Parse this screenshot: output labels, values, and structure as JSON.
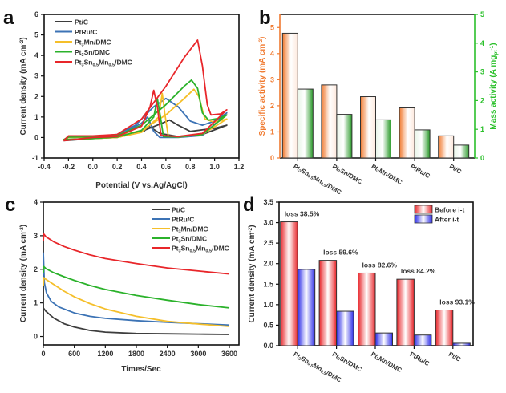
{
  "chart_data": [
    {
      "panel": "a",
      "type": "line",
      "title": "",
      "xlabel": "Potential (V vs.Ag/AgCl)",
      "ylabel": "Current density (mA cm⁻²)",
      "xlim": [
        -0.4,
        1.2
      ],
      "ylim": [
        -1,
        6
      ],
      "xticks": [
        "-0.4",
        "-0.2",
        "0.0",
        "0.2",
        "0.4",
        "0.6",
        "0.8",
        "1.0",
        "1.2"
      ],
      "yticks": [
        "-1",
        "0",
        "1",
        "2",
        "3",
        "4",
        "5",
        "6"
      ],
      "legend_position": "top-left",
      "series": [
        {
          "name": "Pt/C",
          "color": "#3d3d3d",
          "peak_forward": [
            0.63,
            0.85
          ],
          "peak_backward": [
            0.46,
            0.55
          ],
          "points": [
            [
              -0.24,
              -0.15
            ],
            [
              -0.2,
              0.0
            ],
            [
              0.0,
              0.02
            ],
            [
              0.2,
              0.05
            ],
            [
              0.4,
              0.3
            ],
            [
              0.55,
              0.65
            ],
            [
              0.63,
              0.85
            ],
            [
              0.7,
              0.6
            ],
            [
              0.8,
              0.3
            ],
            [
              1.0,
              0.45
            ],
            [
              1.1,
              0.6
            ],
            [
              1.1,
              0.6
            ],
            [
              0.9,
              0.15
            ],
            [
              0.7,
              0.05
            ],
            [
              0.55,
              0.2
            ],
            [
              0.46,
              0.55
            ],
            [
              0.42,
              0.3
            ],
            [
              0.2,
              0.0
            ],
            [
              0.0,
              -0.05
            ],
            [
              -0.24,
              -0.15
            ]
          ]
        },
        {
          "name": "PtRu/C",
          "color": "#3c73b5",
          "peak_forward": [
            0.6,
            1.9
          ],
          "peak_backward": [
            0.45,
            1.0
          ],
          "points": [
            [
              -0.24,
              -0.12
            ],
            [
              -0.2,
              0.02
            ],
            [
              0.0,
              0.05
            ],
            [
              0.2,
              0.15
            ],
            [
              0.35,
              0.6
            ],
            [
              0.5,
              1.5
            ],
            [
              0.6,
              1.9
            ],
            [
              0.7,
              1.5
            ],
            [
              0.8,
              0.8
            ],
            [
              0.9,
              0.6
            ],
            [
              1.0,
              0.8
            ],
            [
              1.1,
              1.2
            ],
            [
              1.1,
              1.2
            ],
            [
              0.9,
              0.1
            ],
            [
              0.7,
              0.0
            ],
            [
              0.55,
              0.0
            ],
            [
              0.5,
              0.3
            ],
            [
              0.45,
              1.0
            ],
            [
              0.4,
              0.7
            ],
            [
              0.2,
              0.05
            ],
            [
              0.0,
              -0.03
            ],
            [
              -0.24,
              -0.12
            ]
          ]
        },
        {
          "name": "Pt₃Mn/DMC",
          "color": "#f5bf2a",
          "peak_forward": [
            0.83,
            2.35
          ],
          "peak_backward": [
            0.57,
            2.15
          ],
          "points": [
            [
              -0.24,
              -0.12
            ],
            [
              -0.2,
              0.0
            ],
            [
              0.0,
              0.02
            ],
            [
              0.2,
              0.05
            ],
            [
              0.4,
              0.35
            ],
            [
              0.6,
              1.1
            ],
            [
              0.75,
              1.9
            ],
            [
              0.83,
              2.35
            ],
            [
              0.87,
              2.0
            ],
            [
              0.92,
              0.9
            ],
            [
              1.0,
              0.75
            ],
            [
              1.1,
              0.9
            ],
            [
              1.1,
              0.9
            ],
            [
              0.9,
              0.15
            ],
            [
              0.7,
              0.02
            ],
            [
              0.62,
              0.05
            ],
            [
              0.59,
              1.2
            ],
            [
              0.57,
              2.15
            ],
            [
              0.54,
              1.0
            ],
            [
              0.4,
              0.25
            ],
            [
              0.2,
              0.0
            ],
            [
              0.0,
              -0.05
            ],
            [
              -0.24,
              -0.12
            ]
          ]
        },
        {
          "name": "Pt₃Sn/DMC",
          "color": "#2bb22b",
          "peak_forward": [
            0.81,
            2.8
          ],
          "peak_backward": [
            0.53,
            1.9
          ],
          "points": [
            [
              -0.24,
              -0.1
            ],
            [
              -0.2,
              0.02
            ],
            [
              0.0,
              0.03
            ],
            [
              0.2,
              0.1
            ],
            [
              0.4,
              0.6
            ],
            [
              0.6,
              1.6
            ],
            [
              0.75,
              2.5
            ],
            [
              0.81,
              2.8
            ],
            [
              0.86,
              2.4
            ],
            [
              0.9,
              1.2
            ],
            [
              0.95,
              0.85
            ],
            [
              1.05,
              0.95
            ],
            [
              1.1,
              1.1
            ],
            [
              1.1,
              1.1
            ],
            [
              0.9,
              0.15
            ],
            [
              0.7,
              0.03
            ],
            [
              0.58,
              0.05
            ],
            [
              0.55,
              1.2
            ],
            [
              0.53,
              1.9
            ],
            [
              0.5,
              1.0
            ],
            [
              0.4,
              0.35
            ],
            [
              0.2,
              0.02
            ],
            [
              0.0,
              -0.05
            ],
            [
              -0.24,
              -0.1
            ]
          ]
        },
        {
          "name": "Pt₃Sn₀.₅Mn₀.₅/DMC",
          "color": "#e8262a",
          "peak_forward": [
            0.86,
            4.75
          ],
          "peak_backward": [
            0.5,
            2.3
          ],
          "points": [
            [
              -0.24,
              -0.15
            ],
            [
              -0.2,
              0.08
            ],
            [
              0.0,
              0.08
            ],
            [
              0.2,
              0.15
            ],
            [
              0.4,
              0.9
            ],
            [
              0.6,
              2.5
            ],
            [
              0.75,
              3.9
            ],
            [
              0.86,
              4.75
            ],
            [
              0.9,
              3.5
            ],
            [
              0.94,
              1.6
            ],
            [
              0.97,
              1.1
            ],
            [
              1.05,
              1.15
            ],
            [
              1.1,
              1.35
            ],
            [
              1.1,
              1.35
            ],
            [
              0.9,
              0.2
            ],
            [
              0.7,
              0.05
            ],
            [
              0.56,
              0.1
            ],
            [
              0.53,
              1.5
            ],
            [
              0.5,
              2.3
            ],
            [
              0.47,
              1.5
            ],
            [
              0.4,
              0.55
            ],
            [
              0.2,
              0.05
            ],
            [
              0.0,
              0.0
            ],
            [
              -0.24,
              -0.15
            ]
          ]
        }
      ]
    },
    {
      "panel": "b",
      "type": "bar",
      "title": "",
      "categories": [
        "Pt₃Sn₀.₅Mn₀.₅/DMC",
        "Pt₃Sn/DMC",
        "Pt₃Mn/DMC",
        "PtRu/C",
        "Pt/C"
      ],
      "series": [
        {
          "name": "Specific activity",
          "axis": "left",
          "color": "#f07a30",
          "values": [
            4.78,
            2.8,
            2.35,
            1.92,
            0.85
          ]
        },
        {
          "name": "Mass activity",
          "axis": "right",
          "color": "#2a9a2a",
          "values": [
            2.4,
            1.52,
            1.33,
            0.98,
            0.45
          ]
        }
      ],
      "ylabel": "Specific activity (mA cm⁻²)",
      "ylabel_right": "Mass activity (A mgₚₜ⁻¹)",
      "ylim": [
        0,
        5.5
      ],
      "ylim_right": [
        0,
        5
      ],
      "yticks": [
        "0",
        "1",
        "2",
        "3",
        "4",
        "5"
      ],
      "yticks_right": [
        "0",
        "1",
        "2",
        "3",
        "4",
        "5"
      ]
    },
    {
      "panel": "c",
      "type": "line",
      "title": "",
      "xlabel": "Times/Sec",
      "ylabel": "Current density (mA cm⁻²)",
      "xlim": [
        0,
        3600
      ],
      "ylim": [
        -0.25,
        4
      ],
      "xticks": [
        "0",
        "600",
        "1200",
        "1800",
        "2400",
        "3000",
        "3600"
      ],
      "yticks": [
        "0",
        "1",
        "2",
        "3",
        "4"
      ],
      "legend_position": "top-right",
      "series": [
        {
          "name": "Pt/C",
          "color": "#3d3d3d",
          "x": [
            0,
            50,
            200,
            400,
            600,
            900,
            1200,
            1800,
            2400,
            3000,
            3600
          ],
          "y": [
            0.85,
            0.75,
            0.55,
            0.38,
            0.28,
            0.18,
            0.13,
            0.09,
            0.08,
            0.07,
            0.06
          ]
        },
        {
          "name": "PtRu/C",
          "color": "#3c73b5",
          "x": [
            0,
            20,
            60,
            150,
            300,
            600,
            900,
            1200,
            1800,
            2400,
            3000,
            3600
          ],
          "y": [
            2.5,
            1.6,
            1.3,
            1.05,
            0.88,
            0.7,
            0.6,
            0.54,
            0.47,
            0.42,
            0.38,
            0.34
          ]
        },
        {
          "name": "Pt₃Mn/DMC",
          "color": "#f5bf2a",
          "x": [
            0,
            10,
            50,
            200,
            400,
            600,
            900,
            1200,
            1800,
            2400,
            3000,
            3600
          ],
          "y": [
            1.5,
            1.75,
            1.7,
            1.55,
            1.35,
            1.18,
            0.98,
            0.82,
            0.6,
            0.45,
            0.37,
            0.3
          ]
        },
        {
          "name": "Pt₃Sn/DMC",
          "color": "#2bb22b",
          "x": [
            0,
            10,
            50,
            200,
            400,
            600,
            900,
            1200,
            1800,
            2400,
            3000,
            3600
          ],
          "y": [
            1.9,
            2.08,
            2.02,
            1.9,
            1.78,
            1.67,
            1.52,
            1.4,
            1.22,
            1.08,
            0.95,
            0.85
          ]
        },
        {
          "name": "Pt₃Sn₀.₅Mn₀.₅/DMC",
          "color": "#e8262a",
          "x": [
            0,
            10,
            50,
            200,
            400,
            600,
            900,
            1200,
            1800,
            2400,
            3000,
            3600
          ],
          "y": [
            2.85,
            3.05,
            2.97,
            2.82,
            2.68,
            2.57,
            2.43,
            2.32,
            2.17,
            2.04,
            1.95,
            1.86
          ]
        }
      ]
    },
    {
      "panel": "d",
      "type": "bar",
      "title": "",
      "categories": [
        "Pt₃Sn₀.₅Mn₀.₅/DMC",
        "Pt₃Sn/DMC",
        "Pt₃Mn/DMC",
        "PtRu/C",
        "Pt/C"
      ],
      "series": [
        {
          "name": "Before i-t",
          "color": "#e8262a",
          "values": [
            3.02,
            2.08,
            1.77,
            1.62,
            0.87
          ]
        },
        {
          "name": "After i-t",
          "color": "#2a2ae8",
          "values": [
            1.86,
            0.84,
            0.31,
            0.26,
            0.06
          ]
        }
      ],
      "annotations": [
        "loss 38.5%",
        "loss 59.6%",
        "loss 82.6%",
        "loss 84.2%",
        "loss 93.1%"
      ],
      "ylabel": "Current density (mA cm⁻²)",
      "ylim": [
        0,
        3.5
      ],
      "yticks": [
        "0.0",
        "0.5",
        "1.0",
        "1.5",
        "2.0",
        "2.5",
        "3.0",
        "3.5"
      ],
      "legend_position": "top-right"
    }
  ],
  "panel_labels": [
    "a",
    "b",
    "c",
    "d"
  ]
}
